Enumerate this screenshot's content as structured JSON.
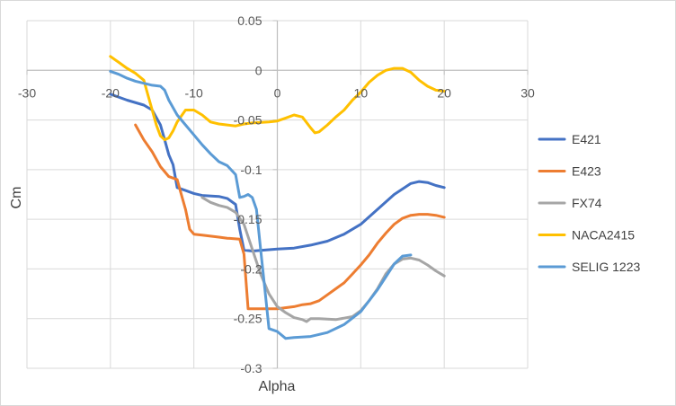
{
  "chart_data": {
    "type": "line",
    "title": "",
    "xlabel": "Alpha",
    "ylabel": "Cm",
    "xlim": [
      -30,
      30
    ],
    "ylim": [
      -0.3,
      0.05
    ],
    "xticks": [
      -30,
      -20,
      -10,
      0,
      10,
      20,
      30
    ],
    "yticks": [
      0.05,
      0,
      -0.05,
      -0.1,
      -0.15,
      -0.2,
      -0.25,
      -0.3
    ],
    "xtick_labels": [
      "-30",
      "-20",
      "-10",
      "0",
      "10",
      "20",
      "30"
    ],
    "ytick_labels": [
      "0.05",
      "0",
      "-0.05",
      "-0.1",
      "-0.15",
      "-0.2",
      "-0.25",
      "-0.3"
    ],
    "grid": "vertical and horizontal major gridlines",
    "legend_position": "right",
    "series": [
      {
        "name": "E421",
        "color": "#4472c4",
        "points": [
          [
            -20,
            -0.024
          ],
          [
            -18,
            -0.03
          ],
          [
            -16,
            -0.035
          ],
          [
            -15,
            -0.04
          ],
          [
            -14,
            -0.055
          ],
          [
            -13.5,
            -0.07
          ],
          [
            -13,
            -0.085
          ],
          [
            -12.5,
            -0.095
          ],
          [
            -12,
            -0.118
          ],
          [
            -11,
            -0.121
          ],
          [
            -10,
            -0.124
          ],
          [
            -9,
            -0.126
          ],
          [
            -7,
            -0.127
          ],
          [
            -6,
            -0.129
          ],
          [
            -5,
            -0.135
          ],
          [
            -4.5,
            -0.16
          ],
          [
            -4,
            -0.181
          ],
          [
            -3,
            -0.182
          ],
          [
            0,
            -0.18
          ],
          [
            2,
            -0.179
          ],
          [
            4,
            -0.176
          ],
          [
            6,
            -0.172
          ],
          [
            8,
            -0.165
          ],
          [
            10,
            -0.155
          ],
          [
            12,
            -0.14
          ],
          [
            14,
            -0.125
          ],
          [
            16,
            -0.114
          ],
          [
            17,
            -0.112
          ],
          [
            18,
            -0.113
          ],
          [
            19,
            -0.116
          ],
          [
            20,
            -0.118
          ]
        ]
      },
      {
        "name": "E423",
        "color": "#ed7d31",
        "points": [
          [
            -17,
            -0.055
          ],
          [
            -16,
            -0.07
          ],
          [
            -15,
            -0.082
          ],
          [
            -14,
            -0.097
          ],
          [
            -13,
            -0.107
          ],
          [
            -12,
            -0.11
          ],
          [
            -11.5,
            -0.125
          ],
          [
            -11,
            -0.14
          ],
          [
            -10.5,
            -0.16
          ],
          [
            -10,
            -0.165
          ],
          [
            -9,
            -0.166
          ],
          [
            -7,
            -0.168
          ],
          [
            -6,
            -0.169
          ],
          [
            -4.5,
            -0.17
          ],
          [
            -4,
            -0.185
          ],
          [
            -3.5,
            -0.24
          ],
          [
            -3,
            -0.24
          ],
          [
            -1,
            -0.24
          ],
          [
            0,
            -0.24
          ],
          [
            2,
            -0.238
          ],
          [
            3,
            -0.236
          ],
          [
            4,
            -0.235
          ],
          [
            5,
            -0.232
          ],
          [
            6,
            -0.226
          ],
          [
            7,
            -0.22
          ],
          [
            8,
            -0.214
          ],
          [
            9,
            -0.205
          ],
          [
            10,
            -0.196
          ],
          [
            11,
            -0.186
          ],
          [
            12,
            -0.174
          ],
          [
            13,
            -0.164
          ],
          [
            14,
            -0.155
          ],
          [
            15,
            -0.149
          ],
          [
            16,
            -0.146
          ],
          [
            17,
            -0.145
          ],
          [
            18,
            -0.145
          ],
          [
            19,
            -0.146
          ],
          [
            20,
            -0.148
          ]
        ]
      },
      {
        "name": "FX74",
        "color": "#a5a5a5",
        "points": [
          [
            -9,
            -0.128
          ],
          [
            -8,
            -0.133
          ],
          [
            -7,
            -0.136
          ],
          [
            -6,
            -0.138
          ],
          [
            -5,
            -0.143
          ],
          [
            -4,
            -0.155
          ],
          [
            -3,
            -0.18
          ],
          [
            -2,
            -0.205
          ],
          [
            -1,
            -0.225
          ],
          [
            0,
            -0.238
          ],
          [
            1,
            -0.244
          ],
          [
            2,
            -0.249
          ],
          [
            3,
            -0.251
          ],
          [
            3.5,
            -0.253
          ],
          [
            4,
            -0.25
          ],
          [
            5,
            -0.25
          ],
          [
            7,
            -0.251
          ],
          [
            9,
            -0.248
          ],
          [
            10,
            -0.242
          ],
          [
            11,
            -0.232
          ],
          [
            12,
            -0.22
          ],
          [
            13,
            -0.205
          ],
          [
            14,
            -0.195
          ],
          [
            15,
            -0.19
          ],
          [
            16,
            -0.189
          ],
          [
            17,
            -0.191
          ],
          [
            18,
            -0.196
          ],
          [
            19,
            -0.202
          ],
          [
            20,
            -0.207
          ]
        ]
      },
      {
        "name": "NACA2415",
        "color": "#ffc000",
        "points": [
          [
            -20,
            0.014
          ],
          [
            -19,
            0.008
          ],
          [
            -18,
            0.002
          ],
          [
            -17,
            -0.003
          ],
          [
            -16,
            -0.01
          ],
          [
            -15.5,
            -0.025
          ],
          [
            -15,
            -0.04
          ],
          [
            -14.5,
            -0.055
          ],
          [
            -14,
            -0.066
          ],
          [
            -13.5,
            -0.07
          ],
          [
            -13,
            -0.068
          ],
          [
            -12.5,
            -0.061
          ],
          [
            -12,
            -0.052
          ],
          [
            -11,
            -0.04
          ],
          [
            -10,
            -0.04
          ],
          [
            -9,
            -0.045
          ],
          [
            -8,
            -0.052
          ],
          [
            -7,
            -0.054
          ],
          [
            -6,
            -0.055
          ],
          [
            -5,
            -0.056
          ],
          [
            -4,
            -0.054
          ],
          [
            -3,
            -0.053
          ],
          [
            -1,
            -0.052
          ],
          [
            0,
            -0.051
          ],
          [
            1,
            -0.048
          ],
          [
            2,
            -0.045
          ],
          [
            3,
            -0.047
          ],
          [
            4,
            -0.058
          ],
          [
            4.5,
            -0.063
          ],
          [
            5,
            -0.062
          ],
          [
            6,
            -0.055
          ],
          [
            7,
            -0.047
          ],
          [
            8,
            -0.04
          ],
          [
            9,
            -0.03
          ],
          [
            10,
            -0.022
          ],
          [
            11,
            -0.012
          ],
          [
            12,
            -0.005
          ],
          [
            13,
            0
          ],
          [
            14,
            0.002
          ],
          [
            15,
            0.002
          ],
          [
            16,
            -0.002
          ],
          [
            17,
            -0.01
          ],
          [
            18,
            -0.016
          ],
          [
            19,
            -0.02
          ],
          [
            20,
            -0.021
          ]
        ]
      },
      {
        "name": "SELIG 1223",
        "color": "#5b9bd5",
        "points": [
          [
            -20,
            -0.001
          ],
          [
            -19,
            -0.004
          ],
          [
            -18,
            -0.008
          ],
          [
            -17,
            -0.011
          ],
          [
            -16,
            -0.013
          ],
          [
            -15,
            -0.015
          ],
          [
            -14,
            -0.016
          ],
          [
            -13.5,
            -0.02
          ],
          [
            -13,
            -0.03
          ],
          [
            -12,
            -0.045
          ],
          [
            -11,
            -0.055
          ],
          [
            -10,
            -0.065
          ],
          [
            -9,
            -0.075
          ],
          [
            -8,
            -0.084
          ],
          [
            -7,
            -0.092
          ],
          [
            -6,
            -0.096
          ],
          [
            -5,
            -0.105
          ],
          [
            -4.5,
            -0.128
          ],
          [
            -4,
            -0.127
          ],
          [
            -3.5,
            -0.125
          ],
          [
            -3,
            -0.128
          ],
          [
            -2.5,
            -0.14
          ],
          [
            -2,
            -0.18
          ],
          [
            -1.5,
            -0.22
          ],
          [
            -1,
            -0.26
          ],
          [
            0,
            -0.263
          ],
          [
            1,
            -0.27
          ],
          [
            2,
            -0.269
          ],
          [
            4,
            -0.268
          ],
          [
            6,
            -0.264
          ],
          [
            8,
            -0.256
          ],
          [
            10,
            -0.243
          ],
          [
            12,
            -0.221
          ],
          [
            13,
            -0.208
          ],
          [
            14,
            -0.195
          ],
          [
            15,
            -0.187
          ],
          [
            16,
            -0.186
          ]
        ]
      }
    ]
  }
}
